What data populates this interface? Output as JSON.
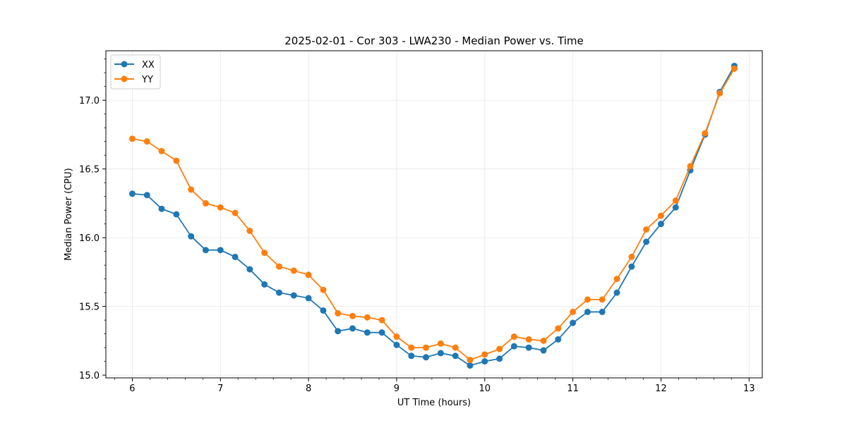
{
  "chart_data": {
    "type": "line",
    "title": "2025-02-01 - Cor 303 - LWA230 - Median Power vs. Time",
    "xlabel": "UT Time (hours)",
    "ylabel": "Median Power (CPU)",
    "xlim": [
      5.7,
      13.15
    ],
    "ylim": [
      14.98,
      17.36
    ],
    "xticks": [
      6,
      7,
      8,
      9,
      10,
      11,
      12,
      13
    ],
    "xtick_labels": [
      "6",
      "7",
      "8",
      "9",
      "10",
      "11",
      "12",
      "13"
    ],
    "yticks": [
      15.0,
      15.5,
      16.0,
      16.5,
      17.0
    ],
    "ytick_labels": [
      "15.0",
      "15.5",
      "16.0",
      "16.5",
      "17.0"
    ],
    "grid": true,
    "legend_position": "top-left",
    "x": [
      6.0,
      6.167,
      6.333,
      6.5,
      6.667,
      6.833,
      7.0,
      7.167,
      7.333,
      7.5,
      7.667,
      7.833,
      8.0,
      8.167,
      8.333,
      8.5,
      8.667,
      8.833,
      9.0,
      9.167,
      9.333,
      9.5,
      9.667,
      9.833,
      10.0,
      10.167,
      10.333,
      10.5,
      10.667,
      10.833,
      11.0,
      11.167,
      11.333,
      11.5,
      11.667,
      11.833,
      12.0,
      12.167,
      12.333,
      12.5,
      12.667,
      12.833
    ],
    "series": [
      {
        "name": "XX",
        "color": "#1f77b4",
        "values": [
          16.32,
          16.31,
          16.21,
          16.17,
          16.01,
          15.91,
          15.91,
          15.86,
          15.77,
          15.66,
          15.6,
          15.58,
          15.56,
          15.47,
          15.32,
          15.34,
          15.31,
          15.31,
          15.22,
          15.14,
          15.13,
          15.16,
          15.14,
          15.07,
          15.1,
          15.12,
          15.21,
          15.2,
          15.18,
          15.26,
          15.38,
          15.46,
          15.46,
          15.6,
          15.79,
          15.97,
          16.1,
          16.22,
          16.49,
          16.75,
          17.06,
          17.25
        ]
      },
      {
        "name": "YY",
        "color": "#ff7f0e",
        "values": [
          16.72,
          16.7,
          16.63,
          16.56,
          16.35,
          16.25,
          16.22,
          16.18,
          16.05,
          15.89,
          15.79,
          15.76,
          15.73,
          15.62,
          15.45,
          15.43,
          15.42,
          15.4,
          15.28,
          15.2,
          15.2,
          15.23,
          15.2,
          15.11,
          15.15,
          15.19,
          15.28,
          15.26,
          15.25,
          15.34,
          15.46,
          15.55,
          15.55,
          15.7,
          15.86,
          16.06,
          16.16,
          16.27,
          16.52,
          16.76,
          17.05,
          17.23
        ]
      }
    ]
  }
}
